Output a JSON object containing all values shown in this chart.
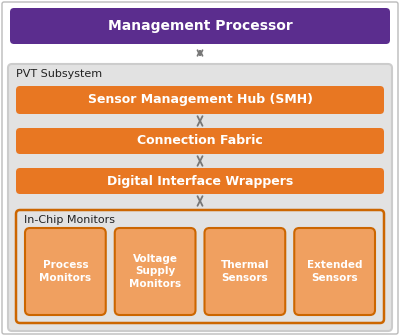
{
  "bg_color": "#ffffff",
  "purple": "#5b2d8e",
  "orange_dark": "#e87722",
  "orange_light": "#f0a060",
  "gray_bg": "#e2e2e2",
  "gray_border": "#cccccc",
  "orange_border": "#cc6600",
  "arrow_color": "#777777",
  "text_white": "#ffffff",
  "text_dark": "#222222",
  "mgmt_label": "Management Processor",
  "smh_label": "Sensor Management Hub (SMH)",
  "cf_label": "Connection Fabric",
  "diw_label": "Digital Interface Wrappers",
  "pvt_label": "PVT Subsystem",
  "icm_label": "In-Chip Monitors",
  "monitors": [
    "Process\nMonitors",
    "Voltage\nSupply\nMonitors",
    "Thermal\nSensors",
    "Extended\nSensors"
  ],
  "outer_border": "#bbbbbb"
}
